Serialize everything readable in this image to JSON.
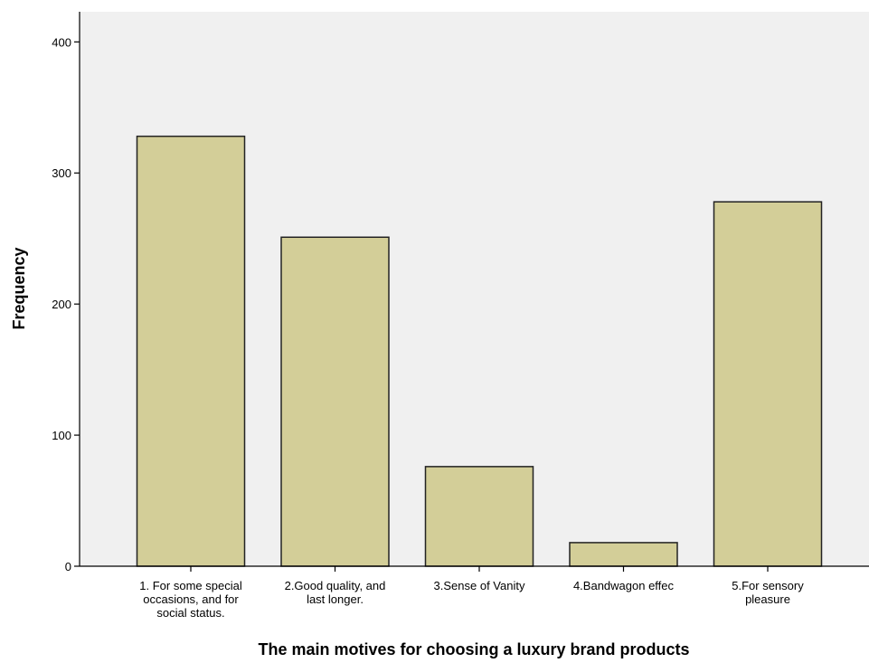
{
  "chart_data": {
    "type": "bar",
    "categories": [
      [
        "1. For some special",
        "occasions, and for",
        "social status."
      ],
      [
        "2.Good quality, and",
        "last longer."
      ],
      [
        "3.Sense of Vanity"
      ],
      [
        "4.Bandwagon effec"
      ],
      [
        "5.For sensory",
        "pleasure"
      ]
    ],
    "values": [
      328,
      251,
      76,
      18,
      278
    ],
    "xlabel": "The main motives for choosing a luxury brand products",
    "ylabel": "Frequency",
    "ylim": [
      0,
      400
    ],
    "yticks": [
      0,
      100,
      200,
      300,
      400
    ],
    "ymax_plot": 423,
    "grid": false,
    "colors": {
      "bar_fill": "#d3ce98",
      "bar_stroke": "#222222",
      "plot_background": "#f0f0f0",
      "axis": "#000000"
    }
  }
}
